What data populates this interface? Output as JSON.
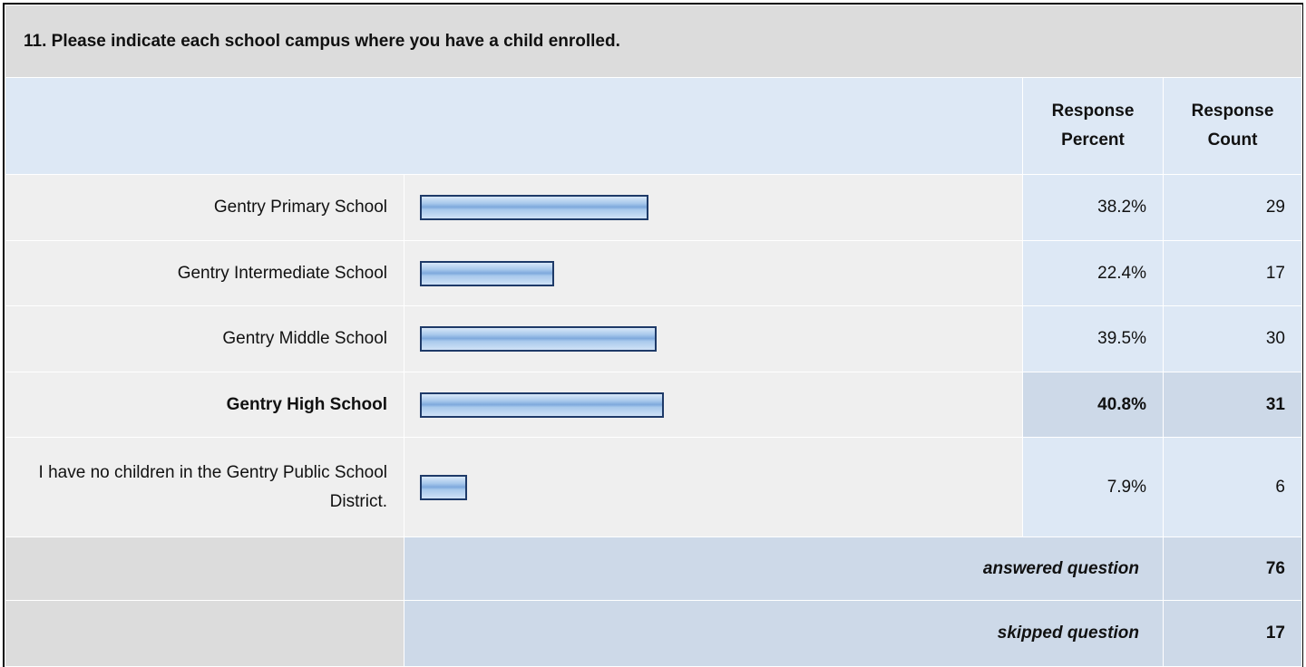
{
  "question": "11. Please indicate each school campus where you have a child enrolled.",
  "headers": {
    "percent": "Response Percent",
    "count": "Response Count"
  },
  "rows": [
    {
      "label": "Gentry Primary School",
      "percent": 38.2,
      "percent_label": "38.2%",
      "count": 29
    },
    {
      "label": "Gentry Intermediate School",
      "percent": 22.4,
      "percent_label": "22.4%",
      "count": 17
    },
    {
      "label": "Gentry Middle School",
      "percent": 39.5,
      "percent_label": "39.5%",
      "count": 30
    },
    {
      "label": "Gentry High School",
      "percent": 40.8,
      "percent_label": "40.8%",
      "count": 31,
      "emphasis": true
    },
    {
      "label": "I have no children in the Gentry Public School District.",
      "percent": 7.9,
      "percent_label": "7.9%",
      "count": 6
    }
  ],
  "footer": [
    {
      "label": "answered question",
      "count": 76
    },
    {
      "label": "skipped question",
      "count": 17
    }
  ]
}
